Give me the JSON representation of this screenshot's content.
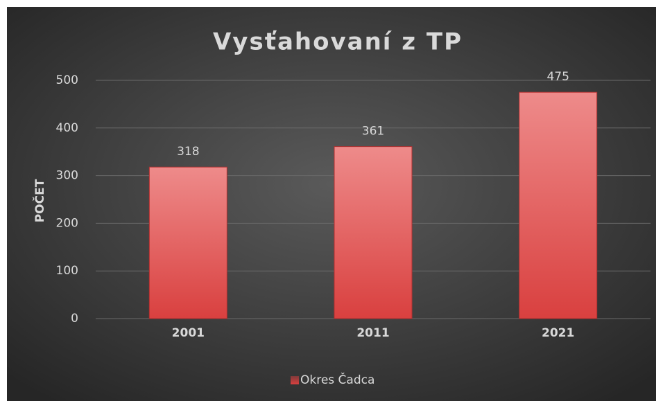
{
  "chart_data": {
    "type": "bar",
    "title": "Vysťahovaní z TP",
    "y_label": "POČET",
    "categories": [
      "2001",
      "2011",
      "2021"
    ],
    "series": [
      {
        "name": "Okres Čadca",
        "color": "#d9403f",
        "values": [
          318,
          361,
          475
        ]
      }
    ],
    "ylim": [
      0,
      500
    ],
    "yticks": [
      0,
      100,
      200,
      300,
      400,
      500
    ],
    "grid": true,
    "legend": "bottom"
  }
}
